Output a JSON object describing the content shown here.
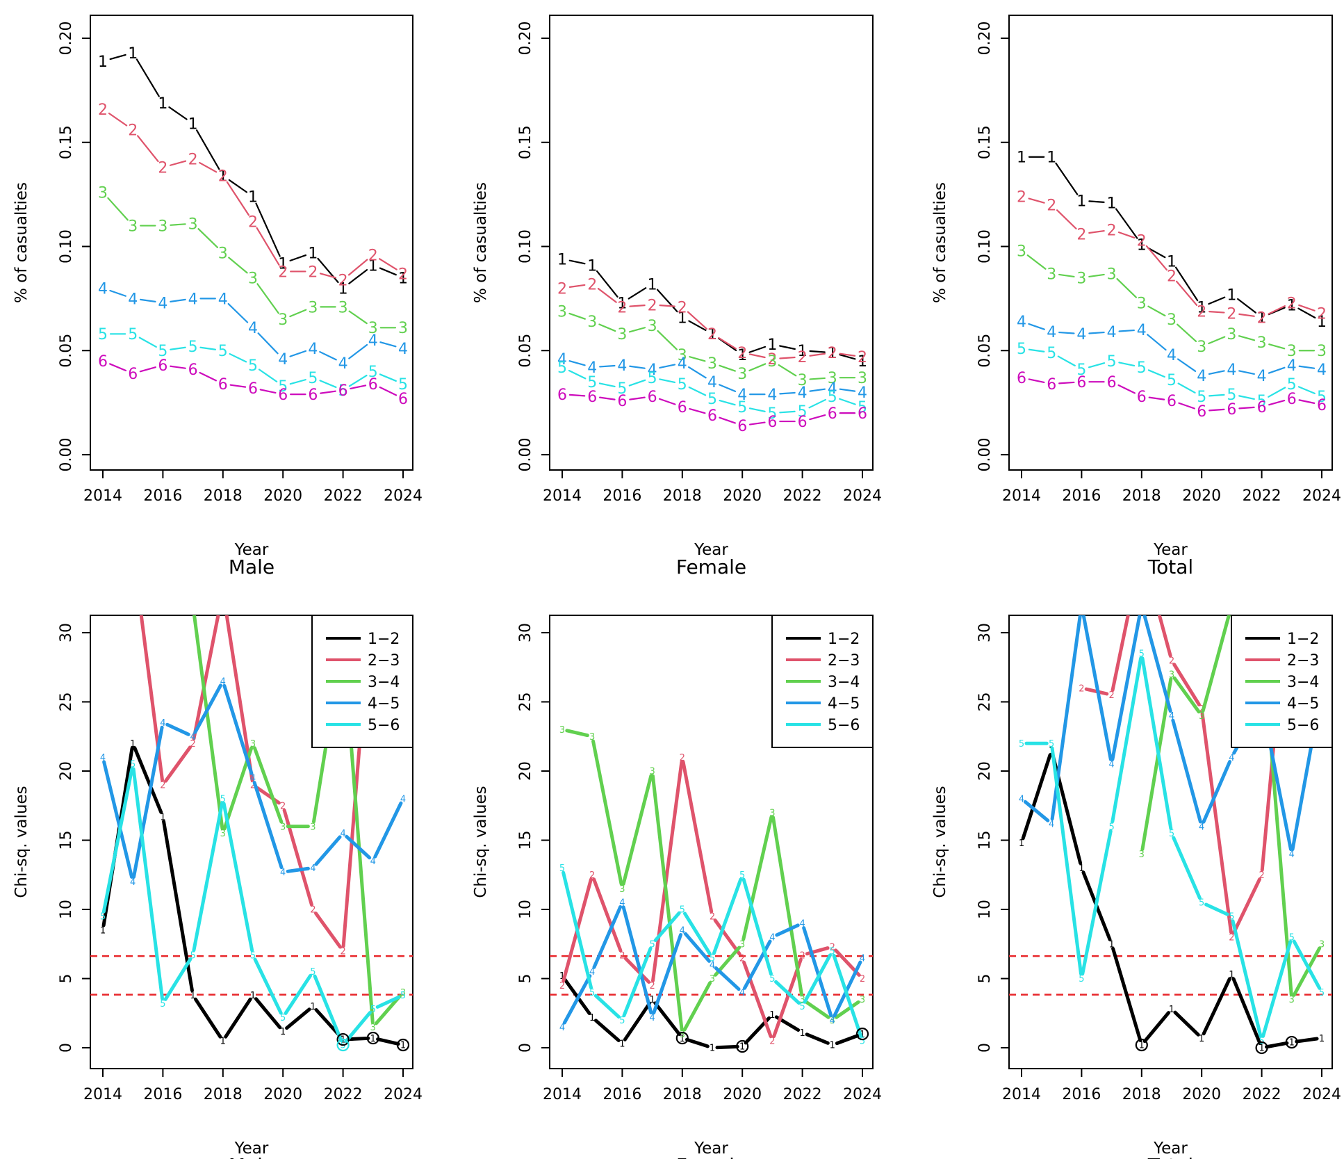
{
  "colors": {
    "1": "#000000",
    "2": "#DF536B",
    "3": "#61D04F",
    "4": "#2297E6",
    "5": "#28E2E5",
    "6": "#CD0BBC",
    "threshold": "#E8262A"
  },
  "chart_data": [
    {
      "type": "line",
      "panel": "top-left",
      "title": "Male",
      "xlabel": "Year",
      "ylabel": "% of casualties",
      "xlim": [
        2014,
        2024
      ],
      "ylim": [
        0,
        0.2
      ],
      "xticks": [
        "2014",
        "2016",
        "2018",
        "2020",
        "2022",
        "2024"
      ],
      "yticks": [
        "0.00",
        "0.05",
        "0.10",
        "0.15",
        "0.20"
      ],
      "x": [
        2014,
        2015,
        2016,
        2017,
        2018,
        2019,
        2020,
        2021,
        2022,
        2023,
        2024
      ],
      "series": [
        {
          "name": "1",
          "values": [
            0.189,
            0.193,
            0.169,
            0.159,
            0.134,
            0.124,
            0.092,
            0.097,
            0.08,
            0.091,
            0.085
          ]
        },
        {
          "name": "2",
          "values": [
            0.166,
            0.156,
            0.138,
            0.142,
            0.134,
            0.112,
            0.088,
            0.088,
            0.084,
            0.096,
            0.087
          ]
        },
        {
          "name": "3",
          "values": [
            0.126,
            0.11,
            0.11,
            0.111,
            0.097,
            0.085,
            0.065,
            0.071,
            0.071,
            0.061,
            0.061
          ]
        },
        {
          "name": "4",
          "values": [
            0.08,
            0.075,
            0.073,
            0.075,
            0.075,
            0.061,
            0.046,
            0.051,
            0.044,
            0.055,
            0.051
          ]
        },
        {
          "name": "5",
          "values": [
            0.058,
            0.058,
            0.05,
            0.052,
            0.05,
            0.043,
            0.033,
            0.037,
            0.031,
            0.04,
            0.034
          ]
        },
        {
          "name": "6",
          "values": [
            0.045,
            0.039,
            0.043,
            0.041,
            0.034,
            0.032,
            0.029,
            0.029,
            0.031,
            0.034,
            0.027
          ]
        }
      ]
    },
    {
      "type": "line",
      "panel": "top-middle",
      "title": "Female",
      "xlabel": "Year",
      "ylabel": "% of casualties",
      "xlim": [
        2014,
        2024
      ],
      "ylim": [
        0,
        0.2
      ],
      "xticks": [
        "2014",
        "2016",
        "2018",
        "2020",
        "2022",
        "2024"
      ],
      "yticks": [
        "0.00",
        "0.05",
        "0.10",
        "0.15",
        "0.20"
      ],
      "x": [
        2014,
        2015,
        2016,
        2017,
        2018,
        2019,
        2020,
        2021,
        2022,
        2023,
        2024
      ],
      "series": [
        {
          "name": "1",
          "values": [
            0.094,
            0.091,
            0.073,
            0.082,
            0.066,
            0.058,
            0.048,
            0.053,
            0.05,
            0.049,
            0.045
          ]
        },
        {
          "name": "2",
          "values": [
            0.08,
            0.082,
            0.071,
            0.072,
            0.071,
            0.058,
            0.049,
            0.046,
            0.047,
            0.049,
            0.047
          ]
        },
        {
          "name": "3",
          "values": [
            0.069,
            0.064,
            0.058,
            0.062,
            0.048,
            0.044,
            0.039,
            0.045,
            0.036,
            0.037,
            0.037
          ]
        },
        {
          "name": "4",
          "values": [
            0.046,
            0.042,
            0.043,
            0.041,
            0.044,
            0.035,
            0.029,
            0.029,
            0.03,
            0.032,
            0.03
          ]
        },
        {
          "name": "5",
          "values": [
            0.042,
            0.035,
            0.032,
            0.037,
            0.034,
            0.027,
            0.023,
            0.02,
            0.021,
            0.028,
            0.023
          ]
        },
        {
          "name": "6",
          "values": [
            0.029,
            0.028,
            0.026,
            0.028,
            0.023,
            0.019,
            0.014,
            0.016,
            0.016,
            0.02,
            0.02
          ]
        }
      ]
    },
    {
      "type": "line",
      "panel": "top-right",
      "title": "Total",
      "xlabel": "Year",
      "ylabel": "% of casualties",
      "xlim": [
        2014,
        2024
      ],
      "ylim": [
        0,
        0.2
      ],
      "xticks": [
        "2014",
        "2016",
        "2018",
        "2020",
        "2022",
        "2024"
      ],
      "yticks": [
        "0.00",
        "0.05",
        "0.10",
        "0.15",
        "0.20"
      ],
      "x": [
        2014,
        2015,
        2016,
        2017,
        2018,
        2019,
        2020,
        2021,
        2022,
        2023,
        2024
      ],
      "series": [
        {
          "name": "1",
          "values": [
            0.143,
            0.143,
            0.122,
            0.121,
            0.101,
            0.093,
            0.071,
            0.077,
            0.066,
            0.072,
            0.064
          ]
        },
        {
          "name": "2",
          "values": [
            0.124,
            0.12,
            0.106,
            0.108,
            0.103,
            0.086,
            0.069,
            0.068,
            0.066,
            0.073,
            0.068
          ]
        },
        {
          "name": "3",
          "values": [
            0.098,
            0.087,
            0.085,
            0.087,
            0.073,
            0.065,
            0.052,
            0.058,
            0.054,
            0.05,
            0.05
          ]
        },
        {
          "name": "4",
          "values": [
            0.064,
            0.059,
            0.058,
            0.059,
            0.06,
            0.048,
            0.038,
            0.041,
            0.038,
            0.043,
            0.041
          ]
        },
        {
          "name": "5",
          "values": [
            0.051,
            0.049,
            0.041,
            0.045,
            0.042,
            0.036,
            0.028,
            0.029,
            0.026,
            0.034,
            0.028
          ]
        },
        {
          "name": "6",
          "values": [
            0.037,
            0.034,
            0.035,
            0.035,
            0.028,
            0.026,
            0.021,
            0.022,
            0.023,
            0.027,
            0.024
          ]
        }
      ]
    },
    {
      "type": "line",
      "panel": "bottom-left",
      "title": "Male",
      "xlabel": "Year",
      "ylabel": "Chi-sq. values",
      "xlim": [
        2014,
        2024
      ],
      "ylim": [
        0,
        30
      ],
      "xticks": [
        "2014",
        "2016",
        "2018",
        "2020",
        "2022",
        "2024"
      ],
      "yticks": [
        "0",
        "5",
        "10",
        "15",
        "20",
        "25",
        "30"
      ],
      "thresholds": [
        3.84,
        6.63
      ],
      "legend": {
        "position": "top-right",
        "entries": [
          "1−2",
          "2−3",
          "3−4",
          "4−5",
          "5−6"
        ]
      },
      "x": [
        2014,
        2015,
        2016,
        2017,
        2018,
        2019,
        2020,
        2021,
        2022,
        2023,
        2024
      ],
      "series": [
        {
          "name": "1−2",
          "values": [
            8.5,
            22.0,
            16.7,
            3.8,
            0.5,
            3.8,
            1.2,
            3.0,
            0.6,
            0.7,
            0.2
          ]
        },
        {
          "name": "2−3",
          "values": [
            31.5,
            36,
            19.0,
            22.0,
            33,
            19.0,
            17.5,
            10.0,
            7.0,
            34,
            22.5
          ]
        },
        {
          "name": "3−4",
          "values": [
            null,
            null,
            null,
            32,
            15.5,
            22.0,
            16.0,
            16.0,
            29.5,
            1.5,
            4.0
          ]
        },
        {
          "name": "4−5",
          "values": [
            21.0,
            12.0,
            23.5,
            22.5,
            26.5,
            19.5,
            12.7,
            13.0,
            15.5,
            13.5,
            18.0
          ]
        },
        {
          "name": "5−6",
          "values": [
            9.5,
            20.5,
            3.2,
            6.7,
            18.0,
            6.7,
            2.2,
            5.5,
            0.2,
            2.8,
            3.8
          ]
        }
      ],
      "point_labels": [
        "1",
        "2",
        "3",
        "4",
        "5"
      ],
      "circled": [
        {
          "series": "1−2",
          "x": 2022
        },
        {
          "series": "1−2",
          "x": 2023
        },
        {
          "series": "1−2",
          "x": 2024
        },
        {
          "series": "5−6",
          "x": 2022
        }
      ]
    },
    {
      "type": "line",
      "panel": "bottom-middle",
      "title": "Female",
      "xlabel": "Year",
      "ylabel": "Chi-sq. values",
      "xlim": [
        2014,
        2024
      ],
      "ylim": [
        0,
        30
      ],
      "xticks": [
        "2014",
        "2016",
        "2018",
        "2020",
        "2022",
        "2024"
      ],
      "yticks": [
        "0",
        "5",
        "10",
        "15",
        "20",
        "25",
        "30"
      ],
      "thresholds": [
        3.84,
        6.63
      ],
      "legend": {
        "position": "top-right",
        "entries": [
          "1−2",
          "2−3",
          "3−4",
          "4−5",
          "5−6"
        ]
      },
      "x": [
        2014,
        2015,
        2016,
        2017,
        2018,
        2019,
        2020,
        2021,
        2022,
        2023,
        2024
      ],
      "series": [
        {
          "name": "1−2",
          "values": [
            5.2,
            2.2,
            0.3,
            3.5,
            0.7,
            0.0,
            0.1,
            2.4,
            1.1,
            0.2,
            1.0
          ]
        },
        {
          "name": "2−3",
          "values": [
            4.5,
            12.5,
            6.7,
            4.5,
            21.0,
            9.5,
            6.5,
            0.5,
            6.7,
            7.3,
            5.0
          ]
        },
        {
          "name": "3−4",
          "values": [
            23.0,
            22.5,
            11.5,
            20.0,
            1.0,
            5.0,
            7.5,
            17.0,
            3.5,
            2.0,
            3.5
          ]
        },
        {
          "name": "4−5",
          "values": [
            1.5,
            5.5,
            10.5,
            2.2,
            8.5,
            6.0,
            4.0,
            8.0,
            9.0,
            2.0,
            6.5
          ]
        },
        {
          "name": "5−6",
          "values": [
            13.0,
            4.0,
            2.0,
            7.5,
            10.0,
            6.5,
            12.5,
            5.0,
            3.0,
            7.0,
            0.5
          ]
        }
      ],
      "point_labels": [
        "1",
        "2",
        "3",
        "4",
        "5"
      ],
      "circled": [
        {
          "series": "1−2",
          "x": 2018
        },
        {
          "series": "1−2",
          "x": 2020
        },
        {
          "series": "1−2",
          "x": 2024
        }
      ]
    },
    {
      "type": "line",
      "panel": "bottom-right",
      "title": "Total",
      "xlabel": "Year",
      "ylabel": "Chi-sq. values",
      "xlim": [
        2014,
        2024
      ],
      "ylim": [
        0,
        30
      ],
      "xticks": [
        "2014",
        "2016",
        "2018",
        "2020",
        "2022",
        "2024"
      ],
      "yticks": [
        "0",
        "5",
        "10",
        "15",
        "20",
        "25",
        "30"
      ],
      "thresholds": [
        3.84,
        6.63
      ],
      "legend": {
        "position": "top-right",
        "entries": [
          "1−2",
          "2−3",
          "3−4",
          "4−5",
          "5−6"
        ]
      },
      "x": [
        2014,
        2015,
        2016,
        2017,
        2018,
        2019,
        2020,
        2021,
        2022,
        2023,
        2024
      ],
      "series": [
        {
          "name": "1−2",
          "values": [
            14.8,
            21.5,
            13.0,
            7.5,
            0.2,
            2.8,
            0.7,
            5.3,
            0.0,
            0.4,
            0.7
          ]
        },
        {
          "name": "2−3",
          "values": [
            null,
            null,
            26.0,
            25.5,
            36,
            28.0,
            24.5,
            8.0,
            12.5,
            36,
            26.5
          ]
        },
        {
          "name": "3−4",
          "values": [
            null,
            null,
            null,
            null,
            14.0,
            27.0,
            24.0,
            32,
            30.0,
            3.5,
            7.5
          ]
        },
        {
          "name": "4−5",
          "values": [
            18.0,
            16.2,
            32,
            20.5,
            32,
            24.0,
            16.0,
            21.0,
            25.0,
            14.0,
            26.0
          ]
        },
        {
          "name": "5−6",
          "values": [
            22.0,
            22.0,
            5.0,
            16.0,
            28.5,
            15.5,
            10.5,
            9.5,
            0.5,
            8.0,
            4.0
          ]
        }
      ],
      "point_labels": [
        "1",
        "2",
        "3",
        "4",
        "5"
      ],
      "circled": [
        {
          "series": "1−2",
          "x": 2018
        },
        {
          "series": "1−2",
          "x": 2022
        },
        {
          "series": "1−2",
          "x": 2023
        }
      ]
    }
  ]
}
